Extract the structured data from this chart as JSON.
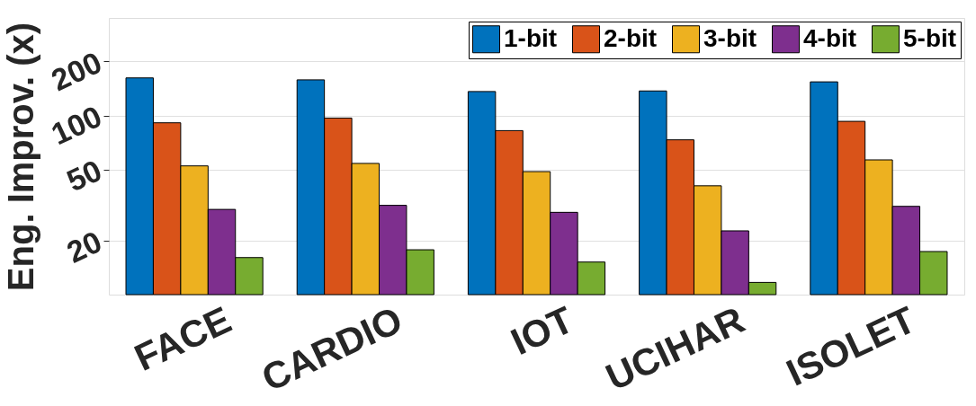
{
  "chart_data": {
    "type": "bar",
    "ylabel": "Eng. Improv. (x)",
    "categories": [
      "FACE",
      "CARDIO",
      "IOT",
      "UCIHAR",
      "ISOLET"
    ],
    "series": [
      {
        "name": "1-bit",
        "color": "#0072bd",
        "values": [
          162,
          158,
          136,
          137,
          154
        ]
      },
      {
        "name": "2-bit",
        "color": "#d95319",
        "values": [
          91,
          96.7,
          82.3,
          73.1,
          92.7
        ]
      },
      {
        "name": "3-bit",
        "color": "#edb120",
        "values": [
          52.3,
          54,
          48.6,
          40.5,
          56.5
        ]
      },
      {
        "name": "4-bit",
        "color": "#7e2f8e",
        "values": [
          29.9,
          31.5,
          28.8,
          22.7,
          31.1
        ]
      },
      {
        "name": "5-bit",
        "color": "#77ac30",
        "values": [
          16.1,
          17.8,
          15.2,
          11.7,
          17.4
        ]
      }
    ],
    "log": true,
    "ylim": [
      10,
      350
    ],
    "yticks": [
      20,
      50,
      100,
      200
    ],
    "grid": "y",
    "legend": "top right"
  }
}
